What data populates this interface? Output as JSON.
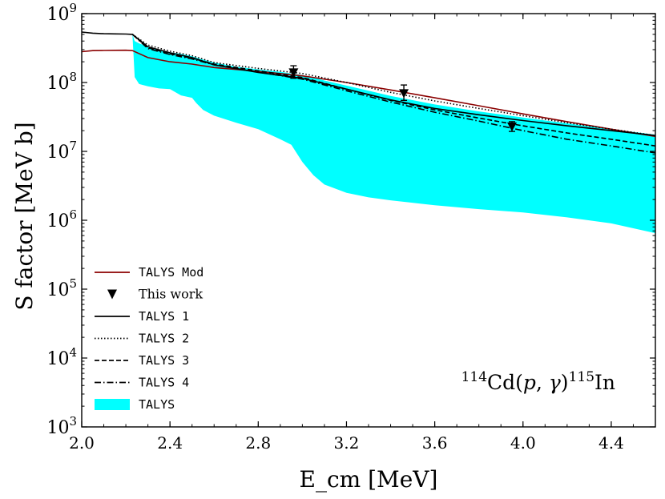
{
  "chart_data": {
    "type": "line",
    "title": "",
    "xlabel": "E_cm [MeV]",
    "ylabel": "S factor [MeV b]",
    "xlim": [
      2.0,
      4.6
    ],
    "ylim": [
      1000,
      1000000000
    ],
    "yscale": "log",
    "x_ticks": [
      2.0,
      2.4,
      2.8,
      3.2,
      3.6,
      4.0,
      4.4
    ],
    "x_tick_labels": [
      "2.0",
      "2.4",
      "2.8",
      "3.2",
      "3.6",
      "4.0",
      "4.4"
    ],
    "y_ticks": [
      1000,
      10000,
      100000,
      1000000,
      10000000,
      100000000,
      1000000000
    ],
    "y_tick_exponents": [
      "3",
      "4",
      "5",
      "6",
      "7",
      "8",
      "9"
    ],
    "y_tick_base": "10",
    "reaction_label": {
      "mass_in": "114",
      "target": "Cd",
      "projectile": "p",
      "ejectile": "γ",
      "mass_out": "115",
      "product": "In"
    },
    "series": [
      {
        "name": "TALYS Mod",
        "style": "solid",
        "color": "#8b0000",
        "x": [
          2.0,
          2.05,
          2.1,
          2.15,
          2.2,
          2.23,
          2.3,
          2.4,
          2.5,
          2.6,
          2.8,
          3.0,
          3.2,
          3.4,
          3.6,
          3.8,
          4.0,
          4.2,
          4.4,
          4.6
        ],
        "y": [
          280000000,
          290000000,
          292000000,
          293000000,
          294000000,
          290000000,
          230000000,
          200000000,
          185000000,
          165000000,
          145000000,
          125000000,
          100000000,
          78000000,
          60000000,
          46000000,
          35000000,
          27000000,
          21000000,
          16500000
        ]
      },
      {
        "name": "TALYS 1",
        "style": "solid",
        "color": "#000000",
        "x": [
          2.0,
          2.05,
          2.1,
          2.15,
          2.2,
          2.23,
          2.3,
          2.4,
          2.5,
          2.6,
          2.8,
          3.0,
          3.2,
          3.4,
          3.6,
          3.8,
          4.0,
          4.2,
          4.4,
          4.6
        ],
        "y": [
          540000000,
          520000000,
          510000000,
          508000000,
          505000000,
          500000000,
          330000000,
          270000000,
          230000000,
          180000000,
          140000000,
          115000000,
          80000000,
          56000000,
          42000000,
          34000000,
          28000000,
          23500000,
          20000000,
          17000000
        ]
      },
      {
        "name": "TALYS 2",
        "style": "dotted",
        "color": "#000000",
        "x": [
          2.23,
          2.3,
          2.4,
          2.5,
          2.6,
          2.8,
          3.0,
          3.2,
          3.4,
          3.6,
          3.8,
          4.0,
          4.2,
          4.4,
          4.6
        ],
        "y": [
          500000000,
          350000000,
          285000000,
          245000000,
          195000000,
          160000000,
          135000000,
          100000000,
          72000000,
          54000000,
          42000000,
          33000000,
          26000000,
          21000000,
          17000000
        ]
      },
      {
        "name": "TALYS 3",
        "style": "dashed",
        "color": "#000000",
        "x": [
          2.23,
          2.3,
          2.4,
          2.5,
          2.6,
          2.8,
          3.0,
          3.2,
          3.4,
          3.6,
          3.8,
          4.0,
          4.2,
          4.4,
          4.6
        ],
        "y": [
          500000000,
          320000000,
          260000000,
          225000000,
          185000000,
          148000000,
          118000000,
          80000000,
          55000000,
          40000000,
          30500000,
          23500000,
          18500000,
          15000000,
          12000000
        ]
      },
      {
        "name": "TALYS 4",
        "style": "dashdot",
        "color": "#000000",
        "x": [
          2.23,
          2.3,
          2.4,
          2.5,
          2.6,
          2.8,
          3.0,
          3.2,
          3.4,
          3.6,
          3.8,
          4.0,
          4.2,
          4.4,
          4.6
        ],
        "y": [
          500000000,
          310000000,
          255000000,
          220000000,
          180000000,
          142000000,
          112000000,
          76000000,
          52000000,
          37000000,
          27500000,
          20000000,
          15000000,
          12000000,
          9500000
        ]
      }
    ],
    "band": {
      "name": "TALYS",
      "color": "#00ffff",
      "x": [
        2.23,
        2.24,
        2.26,
        2.3,
        2.35,
        2.4,
        2.45,
        2.5,
        2.52,
        2.55,
        2.6,
        2.7,
        2.8,
        2.9,
        2.95,
        3.0,
        3.05,
        3.1,
        3.2,
        3.3,
        3.4,
        3.6,
        3.8,
        4.0,
        4.2,
        4.4,
        4.6
      ],
      "lower": [
        500000000,
        120000000,
        95000000,
        88000000,
        82000000,
        80000000,
        65000000,
        60000000,
        50000000,
        40000000,
        33000000,
        26000000,
        21000000,
        15000000,
        12500000,
        7000000,
        4500000,
        3300000,
        2500000,
        2150000,
        1950000,
        1650000,
        1450000,
        1300000,
        1100000,
        900000,
        650000
      ],
      "upper": [
        500000000,
        400000000,
        370000000,
        330000000,
        300000000,
        275000000,
        260000000,
        240000000,
        230000000,
        215000000,
        195000000,
        170000000,
        155000000,
        143000000,
        135000000,
        128000000,
        118000000,
        107000000,
        90000000,
        76000000,
        64000000,
        48000000,
        38000000,
        31000000,
        25500000,
        21000000,
        17500000
      ]
    },
    "points": {
      "name": "This work",
      "x": [
        2.96,
        3.46,
        3.95
      ],
      "y": [
        140000000,
        70000000,
        23000000
      ],
      "err_low": [
        25000000,
        15000000,
        3500000
      ],
      "err_high": [
        35000000,
        22000000,
        4000000
      ]
    },
    "legend_position": "lower-left"
  }
}
